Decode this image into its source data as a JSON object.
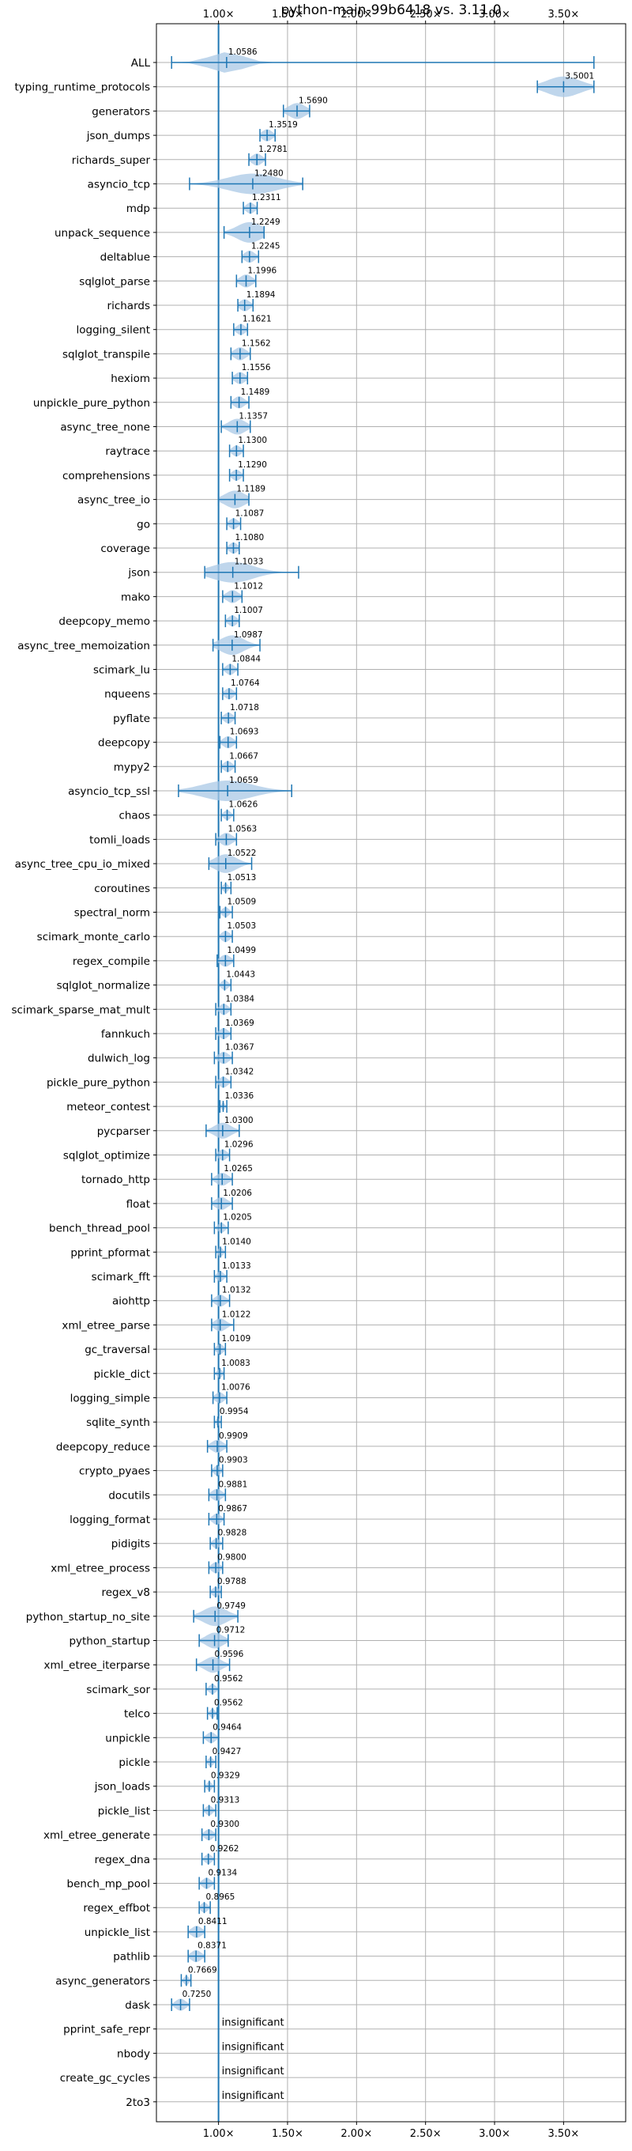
{
  "chart_data": {
    "type": "violin",
    "title": "python-main-99b6418 vs. 3.11.0",
    "xlabel": "",
    "ylabel": "",
    "x_ticks": [
      1.0,
      1.5,
      2.0,
      2.5,
      3.0,
      3.5
    ],
    "x_tick_labels": [
      "1.00×",
      "1.50×",
      "2.00×",
      "2.50×",
      "3.00×",
      "3.50×"
    ],
    "xlim": [
      0.55,
      3.95
    ],
    "grid": true,
    "reference_line": 1.0,
    "colors": {
      "violin": "#1f77b4",
      "violin_fill": "#a9c8e6",
      "grid": "#b0b0b0"
    },
    "insignificant_label": "insignificant",
    "benchmarks": [
      {
        "name": "ALL",
        "label": "1.0586",
        "value": 1.0586,
        "min": 0.66,
        "max": 3.72,
        "spread": 0.2
      },
      {
        "name": "typing_runtime_protocols",
        "label": "3.5001",
        "value": 3.5001,
        "min": 3.31,
        "max": 3.72,
        "spread": 0.2
      },
      {
        "name": "generators",
        "label": "1.5690",
        "value": 1.569,
        "min": 1.47,
        "max": 1.66,
        "spread": 0.1
      },
      {
        "name": "json_dumps",
        "label": "1.3519",
        "value": 1.3519,
        "min": 1.3,
        "max": 1.41,
        "spread": 0.06
      },
      {
        "name": "richards_super",
        "label": "1.2781",
        "value": 1.2781,
        "min": 1.22,
        "max": 1.34,
        "spread": 0.06
      },
      {
        "name": "asyncio_tcp",
        "label": "1.2480",
        "value": 1.248,
        "min": 0.79,
        "max": 1.61,
        "spread": 0.3
      },
      {
        "name": "mdp",
        "label": "1.2311",
        "value": 1.2311,
        "min": 1.18,
        "max": 1.28,
        "spread": 0.05
      },
      {
        "name": "unpack_sequence",
        "label": "1.2249",
        "value": 1.2249,
        "min": 1.04,
        "max": 1.33,
        "spread": 0.15
      },
      {
        "name": "deltablue",
        "label": "1.2245",
        "value": 1.2245,
        "min": 1.17,
        "max": 1.29,
        "spread": 0.06
      },
      {
        "name": "sqlglot_parse",
        "label": "1.1996",
        "value": 1.1996,
        "min": 1.13,
        "max": 1.27,
        "spread": 0.07
      },
      {
        "name": "richards",
        "label": "1.1894",
        "value": 1.1894,
        "min": 1.14,
        "max": 1.25,
        "spread": 0.06
      },
      {
        "name": "logging_silent",
        "label": "1.1621",
        "value": 1.1621,
        "min": 1.11,
        "max": 1.21,
        "spread": 0.05
      },
      {
        "name": "sqlglot_transpile",
        "label": "1.1562",
        "value": 1.1562,
        "min": 1.09,
        "max": 1.23,
        "spread": 0.07
      },
      {
        "name": "hexiom",
        "label": "1.1556",
        "value": 1.1556,
        "min": 1.1,
        "max": 1.21,
        "spread": 0.06
      },
      {
        "name": "unpickle_pure_python",
        "label": "1.1489",
        "value": 1.1489,
        "min": 1.09,
        "max": 1.22,
        "spread": 0.06
      },
      {
        "name": "async_tree_none",
        "label": "1.1357",
        "value": 1.1357,
        "min": 1.02,
        "max": 1.23,
        "spread": 0.1
      },
      {
        "name": "raytrace",
        "label": "1.1300",
        "value": 1.13,
        "min": 1.08,
        "max": 1.18,
        "spread": 0.05
      },
      {
        "name": "comprehensions",
        "label": "1.1290",
        "value": 1.129,
        "min": 1.08,
        "max": 1.18,
        "spread": 0.05
      },
      {
        "name": "async_tree_io",
        "label": "1.1189",
        "value": 1.1189,
        "min": 1.0,
        "max": 1.22,
        "spread": 0.12
      },
      {
        "name": "go",
        "label": "1.1087",
        "value": 1.1087,
        "min": 1.06,
        "max": 1.16,
        "spread": 0.05
      },
      {
        "name": "coverage",
        "label": "1.1080",
        "value": 1.108,
        "min": 1.06,
        "max": 1.15,
        "spread": 0.05
      },
      {
        "name": "json",
        "label": "1.1033",
        "value": 1.1033,
        "min": 0.9,
        "max": 1.58,
        "spread": 0.25
      },
      {
        "name": "mako",
        "label": "1.1012",
        "value": 1.1012,
        "min": 1.03,
        "max": 1.17,
        "spread": 0.07
      },
      {
        "name": "deepcopy_memo",
        "label": "1.1007",
        "value": 1.1007,
        "min": 1.05,
        "max": 1.15,
        "spread": 0.05
      },
      {
        "name": "async_tree_memoization",
        "label": "1.0987",
        "value": 1.0987,
        "min": 0.96,
        "max": 1.3,
        "spread": 0.14
      },
      {
        "name": "scimark_lu",
        "label": "1.0844",
        "value": 1.0844,
        "min": 1.03,
        "max": 1.14,
        "spread": 0.05
      },
      {
        "name": "nqueens",
        "label": "1.0764",
        "value": 1.0764,
        "min": 1.03,
        "max": 1.13,
        "spread": 0.05
      },
      {
        "name": "pyflate",
        "label": "1.0718",
        "value": 1.0718,
        "min": 1.02,
        "max": 1.12,
        "spread": 0.05
      },
      {
        "name": "deepcopy",
        "label": "1.0693",
        "value": 1.0693,
        "min": 1.01,
        "max": 1.13,
        "spread": 0.06
      },
      {
        "name": "mypy2",
        "label": "1.0667",
        "value": 1.0667,
        "min": 1.02,
        "max": 1.12,
        "spread": 0.05
      },
      {
        "name": "asyncio_tcp_ssl",
        "label": "1.0659",
        "value": 1.0659,
        "min": 0.71,
        "max": 1.53,
        "spread": 0.3
      },
      {
        "name": "chaos",
        "label": "1.0626",
        "value": 1.0626,
        "min": 1.02,
        "max": 1.11,
        "spread": 0.04
      },
      {
        "name": "tomli_loads",
        "label": "1.0563",
        "value": 1.0563,
        "min": 0.98,
        "max": 1.13,
        "spread": 0.07
      },
      {
        "name": "async_tree_cpu_io_mixed",
        "label": "1.0522",
        "value": 1.0522,
        "min": 0.93,
        "max": 1.24,
        "spread": 0.13
      },
      {
        "name": "coroutines",
        "label": "1.0513",
        "value": 1.0513,
        "min": 1.02,
        "max": 1.09,
        "spread": 0.03
      },
      {
        "name": "spectral_norm",
        "label": "1.0509",
        "value": 1.0509,
        "min": 1.01,
        "max": 1.1,
        "spread": 0.04
      },
      {
        "name": "scimark_monte_carlo",
        "label": "1.0503",
        "value": 1.0503,
        "min": 1.0,
        "max": 1.1,
        "spread": 0.05
      },
      {
        "name": "regex_compile",
        "label": "1.0499",
        "value": 1.0499,
        "min": 0.99,
        "max": 1.11,
        "spread": 0.06
      },
      {
        "name": "sqlglot_normalize",
        "label": "1.0443",
        "value": 1.0443,
        "min": 1.0,
        "max": 1.09,
        "spread": 0.04
      },
      {
        "name": "scimark_sparse_mat_mult",
        "label": "1.0384",
        "value": 1.0384,
        "min": 0.98,
        "max": 1.09,
        "spread": 0.05
      },
      {
        "name": "fannkuch",
        "label": "1.0369",
        "value": 1.0369,
        "min": 0.98,
        "max": 1.09,
        "spread": 0.05
      },
      {
        "name": "dulwich_log",
        "label": "1.0367",
        "value": 1.0367,
        "min": 0.97,
        "max": 1.1,
        "spread": 0.06
      },
      {
        "name": "pickle_pure_python",
        "label": "1.0342",
        "value": 1.0342,
        "min": 0.98,
        "max": 1.09,
        "spread": 0.05
      },
      {
        "name": "meteor_contest",
        "label": "1.0336",
        "value": 1.0336,
        "min": 1.01,
        "max": 1.06,
        "spread": 0.02
      },
      {
        "name": "pycparser",
        "label": "1.0300",
        "value": 1.03,
        "min": 0.91,
        "max": 1.15,
        "spread": 0.1
      },
      {
        "name": "sqlglot_optimize",
        "label": "1.0296",
        "value": 1.0296,
        "min": 0.98,
        "max": 1.08,
        "spread": 0.05
      },
      {
        "name": "tornado_http",
        "label": "1.0265",
        "value": 1.0265,
        "min": 0.95,
        "max": 1.1,
        "spread": 0.07
      },
      {
        "name": "float",
        "label": "1.0206",
        "value": 1.0206,
        "min": 0.95,
        "max": 1.1,
        "spread": 0.07
      },
      {
        "name": "bench_thread_pool",
        "label": "1.0205",
        "value": 1.0205,
        "min": 0.97,
        "max": 1.07,
        "spread": 0.04
      },
      {
        "name": "pprint_pformat",
        "label": "1.0140",
        "value": 1.014,
        "min": 0.98,
        "max": 1.05,
        "spread": 0.03
      },
      {
        "name": "scimark_fft",
        "label": "1.0133",
        "value": 1.0133,
        "min": 0.97,
        "max": 1.06,
        "spread": 0.04
      },
      {
        "name": "aiohttp",
        "label": "1.0132",
        "value": 1.0132,
        "min": 0.95,
        "max": 1.08,
        "spread": 0.06
      },
      {
        "name": "xml_etree_parse",
        "label": "1.0122",
        "value": 1.0122,
        "min": 0.95,
        "max": 1.11,
        "spread": 0.07
      },
      {
        "name": "gc_traversal",
        "label": "1.0109",
        "value": 1.0109,
        "min": 0.97,
        "max": 1.05,
        "spread": 0.04
      },
      {
        "name": "pickle_dict",
        "label": "1.0083",
        "value": 1.0083,
        "min": 0.97,
        "max": 1.04,
        "spread": 0.03
      },
      {
        "name": "logging_simple",
        "label": "1.0076",
        "value": 1.0076,
        "min": 0.96,
        "max": 1.06,
        "spread": 0.05
      },
      {
        "name": "sqlite_synth",
        "label": "0.9954",
        "value": 0.9954,
        "min": 0.97,
        "max": 1.02,
        "spread": 0.02
      },
      {
        "name": "deepcopy_reduce",
        "label": "0.9909",
        "value": 0.9909,
        "min": 0.92,
        "max": 1.06,
        "spread": 0.07
      },
      {
        "name": "crypto_pyaes",
        "label": "0.9903",
        "value": 0.9903,
        "min": 0.95,
        "max": 1.03,
        "spread": 0.04
      },
      {
        "name": "docutils",
        "label": "0.9881",
        "value": 0.9881,
        "min": 0.93,
        "max": 1.05,
        "spread": 0.06
      },
      {
        "name": "logging_format",
        "label": "0.9867",
        "value": 0.9867,
        "min": 0.93,
        "max": 1.04,
        "spread": 0.05
      },
      {
        "name": "pidigits",
        "label": "0.9828",
        "value": 0.9828,
        "min": 0.94,
        "max": 1.03,
        "spread": 0.04
      },
      {
        "name": "xml_etree_process",
        "label": "0.9800",
        "value": 0.98,
        "min": 0.93,
        "max": 1.03,
        "spread": 0.05
      },
      {
        "name": "regex_v8",
        "label": "0.9788",
        "value": 0.9788,
        "min": 0.94,
        "max": 1.02,
        "spread": 0.04
      },
      {
        "name": "python_startup_no_site",
        "label": "0.9749",
        "value": 0.9749,
        "min": 0.82,
        "max": 1.14,
        "spread": 0.14
      },
      {
        "name": "python_startup",
        "label": "0.9712",
        "value": 0.9712,
        "min": 0.86,
        "max": 1.07,
        "spread": 0.1
      },
      {
        "name": "xml_etree_iterparse",
        "label": "0.9596",
        "value": 0.9596,
        "min": 0.84,
        "max": 1.08,
        "spread": 0.1
      },
      {
        "name": "scimark_sor",
        "label": "0.9562",
        "value": 0.9562,
        "min": 0.91,
        "max": 1.0,
        "spread": 0.04
      },
      {
        "name": "telco",
        "label": "0.9562",
        "value": 0.9562,
        "min": 0.92,
        "max": 0.99,
        "spread": 0.03
      },
      {
        "name": "unpickle",
        "label": "0.9464",
        "value": 0.9464,
        "min": 0.89,
        "max": 1.0,
        "spread": 0.05
      },
      {
        "name": "pickle",
        "label": "0.9427",
        "value": 0.9427,
        "min": 0.91,
        "max": 0.98,
        "spread": 0.03
      },
      {
        "name": "json_loads",
        "label": "0.9329",
        "value": 0.9329,
        "min": 0.9,
        "max": 0.97,
        "spread": 0.03
      },
      {
        "name": "pickle_list",
        "label": "0.9313",
        "value": 0.9313,
        "min": 0.89,
        "max": 0.98,
        "spread": 0.04
      },
      {
        "name": "xml_etree_generate",
        "label": "0.9300",
        "value": 0.93,
        "min": 0.88,
        "max": 0.98,
        "spread": 0.05
      },
      {
        "name": "regex_dna",
        "label": "0.9262",
        "value": 0.9262,
        "min": 0.88,
        "max": 0.97,
        "spread": 0.04
      },
      {
        "name": "bench_mp_pool",
        "label": "0.9134",
        "value": 0.9134,
        "min": 0.86,
        "max": 0.97,
        "spread": 0.05
      },
      {
        "name": "regex_effbot",
        "label": "0.8965",
        "value": 0.8965,
        "min": 0.86,
        "max": 0.94,
        "spread": 0.04
      },
      {
        "name": "unpickle_list",
        "label": "0.8411",
        "value": 0.8411,
        "min": 0.78,
        "max": 0.9,
        "spread": 0.06
      },
      {
        "name": "pathlib",
        "label": "0.8371",
        "value": 0.8371,
        "min": 0.78,
        "max": 0.9,
        "spread": 0.06
      },
      {
        "name": "async_generators",
        "label": "0.7669",
        "value": 0.7669,
        "min": 0.73,
        "max": 0.8,
        "spread": 0.03
      },
      {
        "name": "dask",
        "label": "0.7250",
        "value": 0.725,
        "min": 0.66,
        "max": 0.79,
        "spread": 0.06
      },
      {
        "name": "pprint_safe_repr",
        "insignificant": true
      },
      {
        "name": "nbody",
        "insignificant": true
      },
      {
        "name": "create_gc_cycles",
        "insignificant": true
      },
      {
        "name": "2to3",
        "insignificant": true
      }
    ]
  }
}
